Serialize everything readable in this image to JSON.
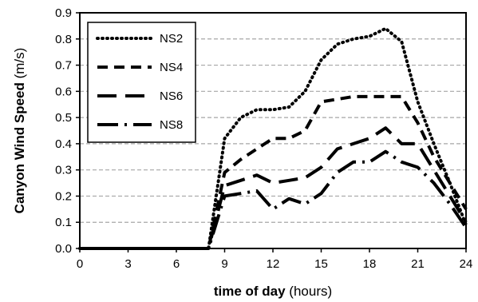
{
  "chart_data": {
    "type": "line",
    "title": "",
    "xlabel": {
      "bold": "time of day",
      "normal": " (hours)"
    },
    "ylabel": {
      "bold": "Canyon Wind Speed",
      "normal": " (m/s)"
    },
    "xlim": [
      0,
      24
    ],
    "ylim": [
      0,
      0.9
    ],
    "xticks": [
      0,
      3,
      6,
      9,
      12,
      15,
      18,
      21,
      24
    ],
    "yticks": [
      0.0,
      0.1,
      0.2,
      0.3,
      0.4,
      0.5,
      0.6,
      0.7,
      0.8,
      0.9
    ],
    "ytick_labels": [
      "0.0",
      "0.1",
      "0.2",
      "0.3",
      "0.4",
      "0.5",
      "0.6",
      "0.7",
      "0.8",
      "0.9"
    ],
    "grid": "horizontal dashed",
    "legend_position": "top-left",
    "series": [
      {
        "name": "NS2",
        "style": "dotted",
        "x": [
          0,
          1,
          2,
          3,
          4,
          5,
          6,
          7,
          8,
          9,
          10,
          11,
          12,
          13,
          14,
          15,
          16,
          17,
          18,
          19,
          20,
          21,
          22,
          23,
          24
        ],
        "y": [
          0,
          0,
          0,
          0,
          0,
          0,
          0,
          0,
          0,
          0.42,
          0.5,
          0.53,
          0.53,
          0.54,
          0.6,
          0.72,
          0.78,
          0.8,
          0.81,
          0.84,
          0.79,
          0.56,
          0.4,
          0.25,
          0.09
        ]
      },
      {
        "name": "NS4",
        "style": "short-dash",
        "x": [
          0,
          1,
          2,
          3,
          4,
          5,
          6,
          7,
          8,
          9,
          10,
          11,
          12,
          13,
          14,
          15,
          16,
          17,
          18,
          19,
          20,
          21,
          22,
          23,
          24
        ],
        "y": [
          0,
          0,
          0,
          0,
          0,
          0,
          0,
          0,
          0,
          0.29,
          0.34,
          0.38,
          0.42,
          0.42,
          0.45,
          0.56,
          0.57,
          0.58,
          0.58,
          0.58,
          0.58,
          0.48,
          0.35,
          0.25,
          0.15
        ]
      },
      {
        "name": "NS6",
        "style": "long-dash",
        "x": [
          0,
          1,
          2,
          3,
          4,
          5,
          6,
          7,
          8,
          9,
          10,
          11,
          12,
          13,
          14,
          15,
          16,
          17,
          18,
          19,
          20,
          21,
          22,
          23,
          24
        ],
        "y": [
          0,
          0,
          0,
          0,
          0,
          0,
          0,
          0,
          0,
          0.24,
          0.26,
          0.28,
          0.25,
          0.26,
          0.27,
          0.31,
          0.38,
          0.4,
          0.42,
          0.46,
          0.4,
          0.4,
          0.3,
          0.2,
          0.1
        ]
      },
      {
        "name": "NS8",
        "style": "dash-dot",
        "x": [
          0,
          1,
          2,
          3,
          4,
          5,
          6,
          7,
          8,
          9,
          10,
          11,
          12,
          13,
          14,
          15,
          16,
          17,
          18,
          19,
          20,
          21,
          22,
          23,
          24
        ],
        "y": [
          0,
          0,
          0,
          0,
          0,
          0,
          0,
          0,
          0,
          0.2,
          0.21,
          0.22,
          0.15,
          0.19,
          0.17,
          0.21,
          0.29,
          0.33,
          0.33,
          0.37,
          0.33,
          0.31,
          0.25,
          0.17,
          0.08
        ]
      }
    ]
  }
}
